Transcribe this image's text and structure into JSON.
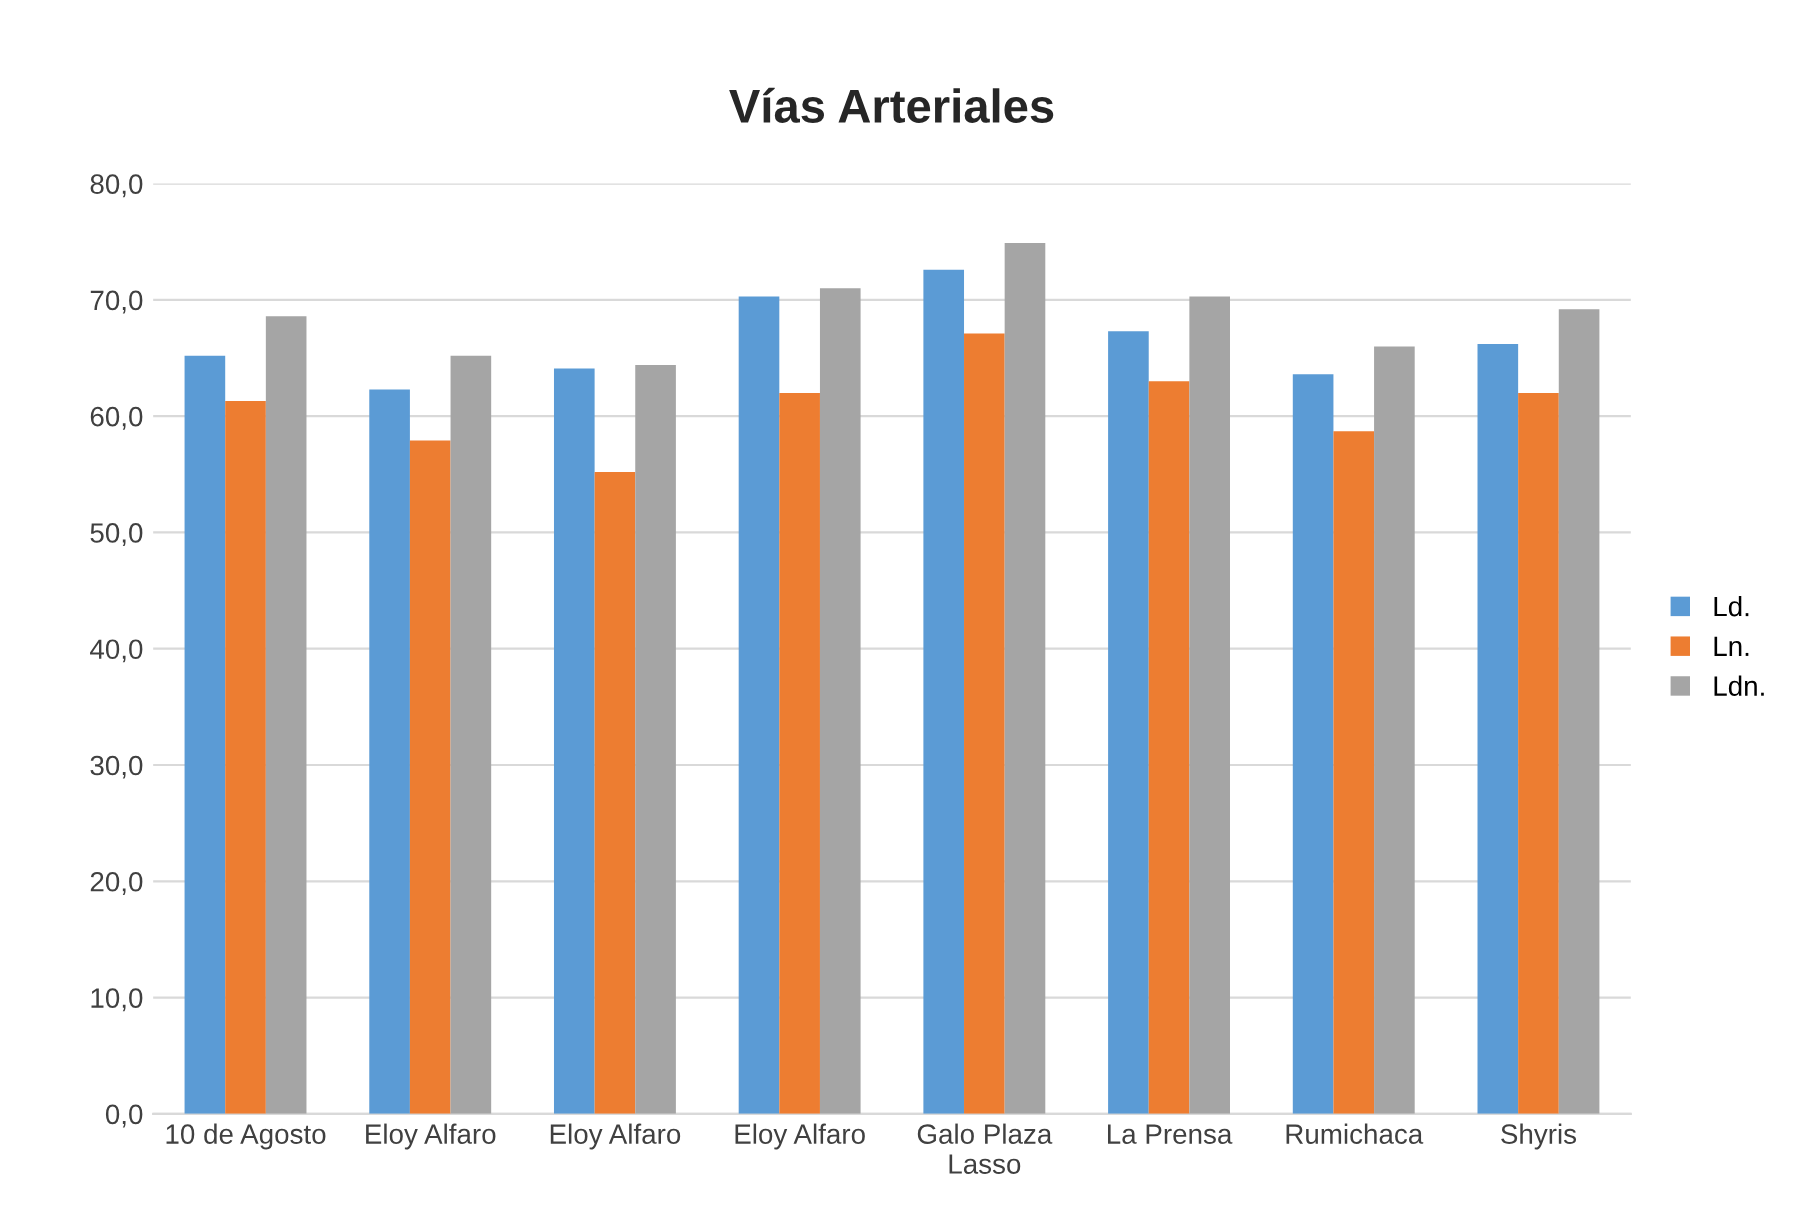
{
  "chart_data": {
    "type": "bar",
    "title": "Vías Arteriales",
    "categories": [
      "10 de Agosto",
      "Eloy Alfaro",
      "Eloy Alfaro",
      "Eloy Alfaro",
      "Galo Plaza\nLasso",
      "La Prensa",
      "Rumichaca",
      "Shyris"
    ],
    "series": [
      {
        "name": "Ld.",
        "color": "#5b9bd5",
        "values": [
          65.2,
          62.3,
          64.1,
          70.3,
          72.6,
          67.3,
          63.6,
          66.2
        ]
      },
      {
        "name": "Ln.",
        "color": "#ed7d31",
        "values": [
          61.3,
          57.9,
          55.2,
          62.0,
          67.1,
          63.0,
          58.7,
          62.0
        ]
      },
      {
        "name": "Ldn.",
        "color": "#a5a5a5",
        "values": [
          68.6,
          65.2,
          64.4,
          71.0,
          74.9,
          70.3,
          66.0,
          69.2
        ]
      }
    ],
    "ylim": [
      0,
      80
    ],
    "yticks": [
      {
        "value": 0,
        "label": "0,0"
      },
      {
        "value": 10,
        "label": "10,0"
      },
      {
        "value": 20,
        "label": "20,0"
      },
      {
        "value": 30,
        "label": "30,0"
      },
      {
        "value": 40,
        "label": "40,0"
      },
      {
        "value": 50,
        "label": "50,0"
      },
      {
        "value": 60,
        "label": "60,0"
      },
      {
        "value": 70,
        "label": "70,0"
      },
      {
        "value": 80,
        "label": "80,0"
      }
    ],
    "grid": "y",
    "legend": "right"
  }
}
